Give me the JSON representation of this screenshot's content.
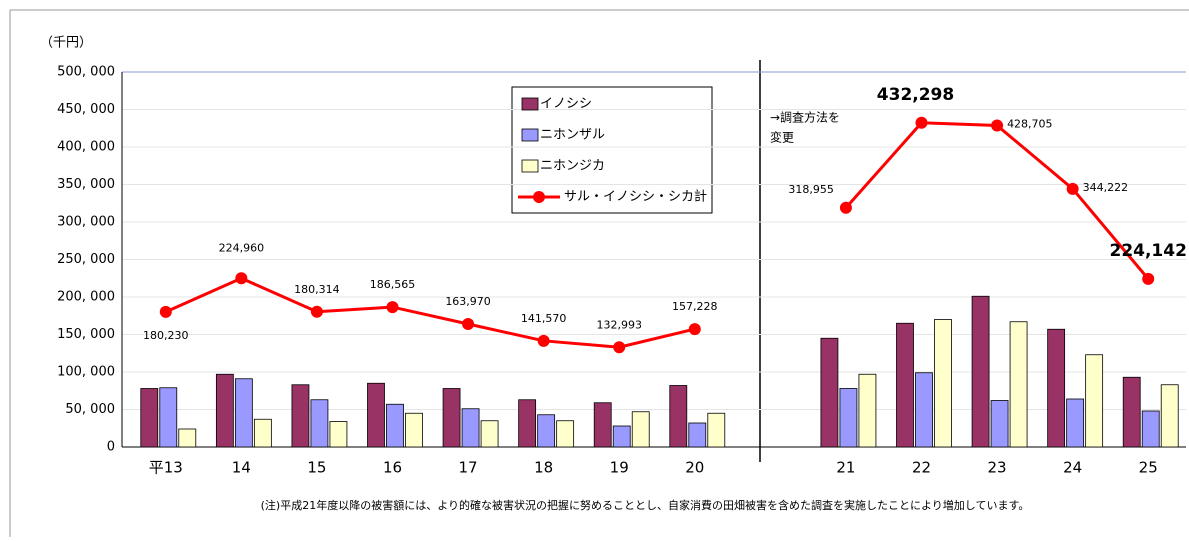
{
  "chart_data": {
    "type": "bar-line",
    "y_unit": "（千円）",
    "annotation": [
      "→調査方法を",
      "変更"
    ],
    "note": "(注)平成21年度以降の被害額には、より的確な被害状況の把握に努めることとし、自家消費の田畑被害を含めた調査を実施したことにより増加しています。",
    "categories": [
      "平13",
      "14",
      "15",
      "16",
      "17",
      "18",
      "19",
      "20",
      null,
      "21",
      "22",
      "23",
      "24",
      "25"
    ],
    "series": [
      {
        "name": "イノシシ",
        "type": "bar",
        "color": "#993366",
        "values": [
          78000,
          97000,
          83000,
          85000,
          78000,
          63000,
          59000,
          82000,
          null,
          145000,
          165000,
          201000,
          157000,
          93000
        ]
      },
      {
        "name": "ニホンザル",
        "type": "bar",
        "color": "#9999ff",
        "values": [
          79000,
          91000,
          63000,
          57000,
          51000,
          43000,
          28000,
          32000,
          null,
          78000,
          99000,
          62000,
          64000,
          48000
        ]
      },
      {
        "name": "ニホンジカ",
        "type": "bar",
        "color": "#ffffcc",
        "values": [
          24000,
          37000,
          34000,
          45000,
          35000,
          35000,
          47000,
          45000,
          null,
          97000,
          170000,
          167000,
          123000,
          83000
        ]
      },
      {
        "name": "サル・イノシシ・シカ計",
        "type": "line",
        "color": "#ff0000",
        "values": [
          180230,
          224960,
          180314,
          186565,
          163970,
          141570,
          132993,
          157228,
          null,
          318955,
          432298,
          428705,
          344222,
          224142
        ],
        "value_labels": [
          "180,230",
          "224,960",
          "180,314",
          "186,565",
          "163,970",
          "141,570",
          "132,993",
          "157,228",
          null,
          "318,955",
          "432,298",
          "428,705",
          "344,222",
          "224,142"
        ]
      }
    ],
    "ylim": [
      0,
      500000
    ],
    "yticks": [
      0,
      {
        "value": 50000,
        "label": "50, 000"
      },
      {
        "value": 100000,
        "label": "100, 000"
      },
      {
        "value": 150000,
        "label": "150, 000"
      },
      {
        "value": 200000,
        "label": "200, 000"
      },
      {
        "value": 250000,
        "label": "250, 000"
      },
      {
        "value": 300000,
        "label": "300, 000"
      },
      {
        "value": 350000,
        "label": "350, 000"
      },
      {
        "value": 400000,
        "label": "400, 000"
      },
      {
        "value": 450000,
        "label": "450, 000"
      },
      {
        "value": 500000,
        "label": "500, 000"
      }
    ],
    "grid": true
  }
}
